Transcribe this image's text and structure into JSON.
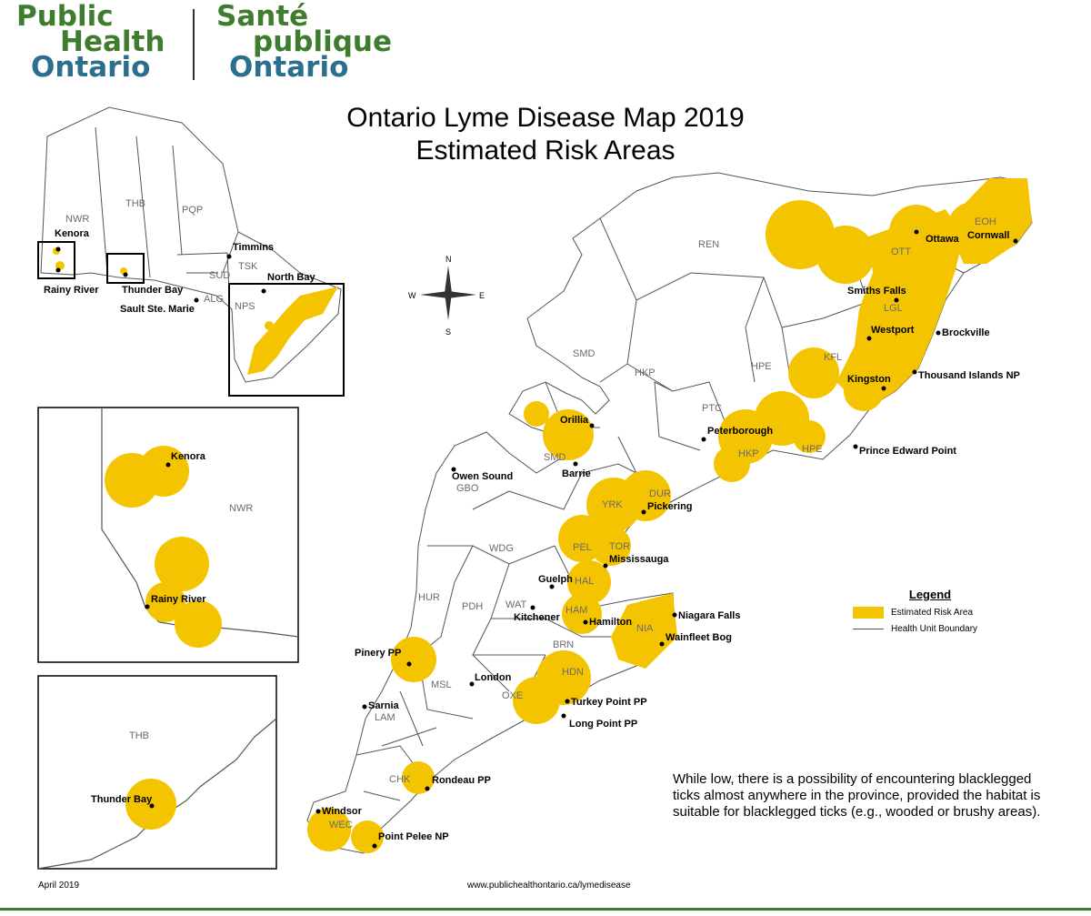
{
  "logo": {
    "en_line1": "Public",
    "en_line2": "Health",
    "en_line3": "Ontario",
    "fr_line1": "Santé",
    "fr_line2": "publique",
    "fr_line3": "Ontario"
  },
  "title": {
    "line1": "Ontario Lyme Disease Map 2019",
    "line2": "Estimated Risk Areas"
  },
  "compass": {
    "n": "N",
    "s": "S",
    "e": "E",
    "w": "W"
  },
  "colors": {
    "risk": "#f5c400",
    "boundary": "#555555",
    "logo_green": "#3e7d2e",
    "logo_blue": "#2b6f8f"
  },
  "legend": {
    "title": "Legend",
    "risk_label": "Estimated Risk Area",
    "boundary_label": "Health Unit Boundary"
  },
  "note": "While low, there is a possibility of encountering blacklegged ticks almost anywhere in the province, provided the habitat is suitable for blacklegged ticks (e.g., wooded or brushy areas).",
  "footer": {
    "date": "April 2019",
    "url": "www.publichealthontario.ca/lymedisease"
  },
  "overview_map": {
    "units": [
      "NWR",
      "THB",
      "PQP",
      "SUD",
      "TSK",
      "ALG",
      "NPS"
    ],
    "places": [
      "Kenora",
      "Rainy River",
      "Thunder Bay",
      "Timmins",
      "North Bay",
      "Sault Ste. Marie"
    ]
  },
  "inset_kenora": {
    "unit": "NWR",
    "places": [
      "Kenora",
      "Rainy River"
    ]
  },
  "inset_thunder_bay": {
    "unit": "THB",
    "places": [
      "Thunder Bay"
    ]
  },
  "main_map": {
    "units": [
      "REN",
      "EOH",
      "OTT",
      "LGL",
      "KFL",
      "HPE",
      "HKP",
      "PTC",
      "SMD",
      "DUR",
      "YRK",
      "PEL",
      "TOR",
      "WDG",
      "GBO",
      "HUR",
      "PDH",
      "WAT",
      "HAL",
      "HAM",
      "NIA",
      "BRN",
      "HDN",
      "OXE",
      "MSL",
      "LAM",
      "CHK",
      "WEC"
    ],
    "places": [
      "Ottawa",
      "Cornwall",
      "Smiths Falls",
      "Westport",
      "Brockville",
      "Kingston",
      "Thousand Islands NP",
      "Peterborough",
      "Prince Edward Point",
      "Orillia",
      "Barrie",
      "Owen Sound",
      "Pickering",
      "Mississauga",
      "Guelph",
      "Kitchener",
      "Hamilton",
      "Niagara Falls",
      "Wainfleet Bog",
      "Pinery PP",
      "London",
      "Sarnia",
      "Turkey Point PP",
      "Long Point PP",
      "Rondeau PP",
      "Windsor",
      "Point Pelee NP"
    ]
  }
}
